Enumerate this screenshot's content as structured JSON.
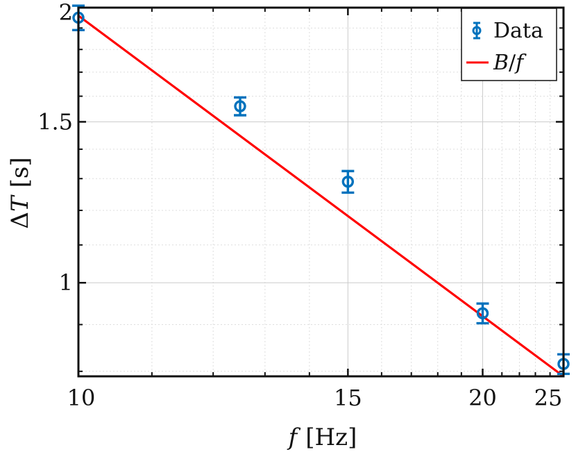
{
  "chart_data": {
    "type": "scatter",
    "x_axis": {
      "label_var": "f",
      "label_unit": "[Hz]",
      "scale": "reciprocal",
      "lim": [
        10,
        25
      ],
      "ticks": [
        10,
        15,
        20,
        25
      ],
      "tick_labels": [
        "10",
        "15",
        "20",
        "25"
      ]
    },
    "y_axis": {
      "label_var": "T",
      "label_prefix": "Δ",
      "label_unit": "[s]",
      "scale": "log",
      "lim": [
        0.79,
        2.0
      ],
      "ticks": [
        1,
        1.5,
        2
      ],
      "tick_labels": [
        "1",
        "1.5",
        "2"
      ]
    },
    "grid": true,
    "legend": {
      "placement": "top-right",
      "entries": [
        {
          "label": "Data",
          "type": "errorbar-circle"
        },
        {
          "label_main": "B",
          "label_sep": "/",
          "label_var": "f",
          "type": "line"
        }
      ]
    },
    "series": [
      {
        "name": "Data",
        "kind": "errorbar",
        "color": "#0072BD",
        "points": [
          {
            "x": 10.0,
            "y": 1.95,
            "err": 0.06
          },
          {
            "x": 12.5,
            "y": 1.56,
            "err": 0.035
          },
          {
            "x": 15.0,
            "y": 1.29,
            "err": 0.035
          },
          {
            "x": 20.0,
            "y": 0.926,
            "err": 0.023
          },
          {
            "x": 25.0,
            "y": 0.815,
            "err": 0.02
          }
        ]
      },
      {
        "name": "B/f",
        "kind": "line",
        "color": "#FF0000",
        "x": [
          10,
          25
        ],
        "y": [
          1.96,
          0.79
        ]
      }
    ]
  }
}
